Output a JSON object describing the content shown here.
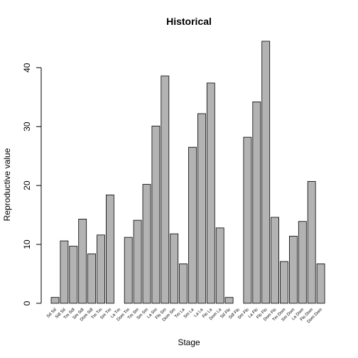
{
  "chart_data": {
    "type": "bar",
    "title": "Historical",
    "xlabel": "Stage",
    "ylabel": "Reproductive value",
    "categories": [
      "Sd Sd",
      "Sdl Sd",
      "Tm Sdl",
      "Sm Sdl",
      "Dom Sdl",
      "Tm Tm",
      "Sm Tm",
      "La Tm",
      "Dom Tm",
      "Tm Sm",
      "Sm Sm",
      "La Sm",
      "Flo Sm",
      "Dom Sm",
      "Tm La",
      "Sm La",
      "La La",
      "Flo La",
      "Dom La",
      "Sd Flo",
      "Sdl Flo",
      "Sm Flo",
      "La Flo",
      "Flo Flo",
      "Dom Flo",
      "Tm Dom",
      "Sm Dom",
      "La Dom",
      "Flo Dom",
      "Dom Dom"
    ],
    "values": [
      1.0,
      10.6,
      9.7,
      14.3,
      8.4,
      11.6,
      18.4,
      0,
      11.2,
      14.1,
      20.2,
      30.1,
      38.6,
      11.8,
      6.7,
      26.5,
      32.2,
      37.4,
      12.8,
      1.0,
      0,
      28.2,
      34.2,
      44.5,
      14.6,
      7.1,
      11.4,
      13.9,
      20.7,
      6.7
    ],
    "color": "#b3b3b3",
    "ylim": [
      0,
      44.5
    ],
    "yticks": [
      0,
      10,
      20,
      30,
      40
    ],
    "grid": false
  }
}
